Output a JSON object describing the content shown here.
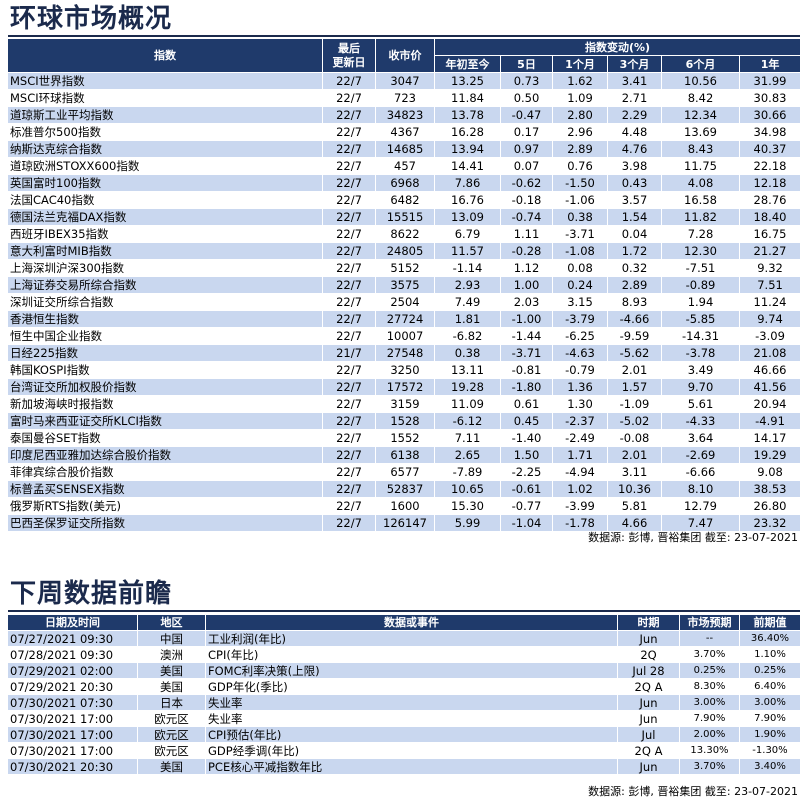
{
  "section1": {
    "title": "环球市场概况",
    "headers": {
      "index": "指数",
      "updated": "最后\n更新日",
      "close": "收市价",
      "change_group": "指数变动(%)",
      "ytd": "年初至今",
      "d5": "5日",
      "m1": "1个月",
      "m3": "3个月",
      "m6": "6个月",
      "y1": "1年"
    },
    "rows": [
      [
        "MSCI世界指数",
        "22/7",
        "3047",
        "13.25",
        "0.73",
        "1.62",
        "3.41",
        "10.56",
        "31.99"
      ],
      [
        "MSCI环球指数",
        "22/7",
        "723",
        "11.84",
        "0.50",
        "1.09",
        "2.71",
        "8.42",
        "30.83"
      ],
      [
        "道琼斯工业平均指数",
        "22/7",
        "34823",
        "13.78",
        "-0.47",
        "2.80",
        "2.29",
        "12.34",
        "30.66"
      ],
      [
        "标准普尔500指数",
        "22/7",
        "4367",
        "16.28",
        "0.17",
        "2.96",
        "4.48",
        "13.69",
        "34.98"
      ],
      [
        "纳斯达克综合指数",
        "22/7",
        "14685",
        "13.94",
        "0.97",
        "2.89",
        "4.76",
        "8.43",
        "40.37"
      ],
      [
        "道琼欧洲STOXX600指数",
        "22/7",
        "457",
        "14.41",
        "0.07",
        "0.76",
        "3.98",
        "11.75",
        "22.18"
      ],
      [
        "英国富时100指数",
        "22/7",
        "6968",
        "7.86",
        "-0.62",
        "-1.50",
        "0.43",
        "4.08",
        "12.18"
      ],
      [
        "法国CAC40指数",
        "22/7",
        "6482",
        "16.76",
        "-0.18",
        "-1.06",
        "3.57",
        "16.58",
        "28.76"
      ],
      [
        "德国法兰克福DAX指数",
        "22/7",
        "15515",
        "13.09",
        "-0.74",
        "0.38",
        "1.54",
        "11.82",
        "18.40"
      ],
      [
        "西班牙IBEX35指数",
        "22/7",
        "8622",
        "6.79",
        "1.11",
        "-3.71",
        "0.04",
        "7.28",
        "16.75"
      ],
      [
        "意大利富时MIB指数",
        "22/7",
        "24805",
        "11.57",
        "-0.28",
        "-1.08",
        "1.72",
        "12.30",
        "21.27"
      ],
      [
        "上海深圳沪深300指数",
        "22/7",
        "5152",
        "-1.14",
        "1.12",
        "0.08",
        "0.32",
        "-7.51",
        "9.32"
      ],
      [
        "上海证券交易所综合指数",
        "22/7",
        "3575",
        "2.93",
        "1.00",
        "0.24",
        "2.89",
        "-0.89",
        "7.51"
      ],
      [
        "深圳证交所综合指数",
        "22/7",
        "2504",
        "7.49",
        "2.03",
        "3.15",
        "8.93",
        "1.94",
        "11.24"
      ],
      [
        "香港恒生指数",
        "22/7",
        "27724",
        "1.81",
        "-1.00",
        "-3.79",
        "-4.66",
        "-5.85",
        "9.74"
      ],
      [
        "恒生中国企业指数",
        "22/7",
        "10007",
        "-6.82",
        "-1.44",
        "-6.25",
        "-9.59",
        "-14.31",
        "-3.09"
      ],
      [
        "日经225指数",
        "21/7",
        "27548",
        "0.38",
        "-3.71",
        "-4.63",
        "-5.62",
        "-3.78",
        "21.08"
      ],
      [
        "韩国KOSPI指数",
        "22/7",
        "3250",
        "13.11",
        "-0.81",
        "-0.79",
        "2.01",
        "3.49",
        "46.66"
      ],
      [
        "台湾证交所加权股价指数",
        "22/7",
        "17572",
        "19.28",
        "-1.80",
        "1.36",
        "1.57",
        "9.70",
        "41.56"
      ],
      [
        "新加坡海峡时报指数",
        "22/7",
        "3159",
        "11.09",
        "0.61",
        "1.30",
        "-1.09",
        "5.61",
        "20.94"
      ],
      [
        "富时马来西亚证交所KLCI指数",
        "22/7",
        "1528",
        "-6.12",
        "0.45",
        "-2.37",
        "-5.02",
        "-4.33",
        "-4.91"
      ],
      [
        "泰国曼谷SET指数",
        "22/7",
        "1552",
        "7.11",
        "-1.40",
        "-2.49",
        "-0.08",
        "3.64",
        "14.17"
      ],
      [
        "印度尼西亚雅加达综合股价指数",
        "22/7",
        "6138",
        "2.65",
        "1.50",
        "1.71",
        "2.01",
        "-2.69",
        "19.29"
      ],
      [
        "菲律宾综合股价指数",
        "22/7",
        "6577",
        "-7.89",
        "-2.25",
        "-4.94",
        "3.11",
        "-6.66",
        "9.08"
      ],
      [
        "标普孟买SENSEX指数",
        "22/7",
        "52837",
        "10.65",
        "-0.61",
        "1.02",
        "10.36",
        "8.10",
        "38.53"
      ],
      [
        "俄罗斯RTS指数(美元)",
        "22/7",
        "1600",
        "15.30",
        "-0.77",
        "-3.99",
        "5.81",
        "12.79",
        "26.80"
      ],
      [
        "巴西圣保罗证交所指数",
        "22/7",
        "126147",
        "5.99",
        "-1.04",
        "-1.78",
        "4.66",
        "7.47",
        "23.32"
      ]
    ],
    "source": "数据源: 彭博, 晋裕集团 截至: 23-07-2021"
  },
  "section2": {
    "title": "下周数据前瞻",
    "headers": {
      "datetime": "日期及时间",
      "region": "地区",
      "event": "数据或事件",
      "period": "时期",
      "forecast": "市场预期",
      "previous": "前期值"
    },
    "rows": [
      [
        "07/27/2021 09:30",
        "中国",
        "工业利润(年比)",
        "Jun",
        "--",
        "36.40%"
      ],
      [
        "07/28/2021 09:30",
        "澳洲",
        "CPI(年比)",
        "2Q",
        "3.70%",
        "1.10%"
      ],
      [
        "07/29/2021 02:00",
        "美国",
        "FOMC利率决策(上限)",
        "Jul 28",
        "0.25%",
        "0.25%"
      ],
      [
        "07/29/2021 20:30",
        "美国",
        "GDP年化(季比)",
        "2Q A",
        "8.30%",
        "6.40%"
      ],
      [
        "07/30/2021 07:30",
        "日本",
        "失业率",
        "Jun",
        "3.00%",
        "3.00%"
      ],
      [
        "07/30/2021 17:00",
        "欧元区",
        "失业率",
        "Jun",
        "7.90%",
        "7.90%"
      ],
      [
        "07/30/2021 17:00",
        "欧元区",
        "CPI预估(年比)",
        "Jul",
        "2.00%",
        "1.90%"
      ],
      [
        "07/30/2021 17:00",
        "欧元区",
        "GDP经季调(年比)",
        "2Q A",
        "13.30%",
        "-1.30%"
      ],
      [
        "07/30/2021 20:30",
        "美国",
        "PCE核心平减指数年比",
        "Jun",
        "3.70%",
        "3.40%"
      ]
    ],
    "source": "数据源: 彭博, 晋裕集团 截至: 23-07-2021"
  }
}
